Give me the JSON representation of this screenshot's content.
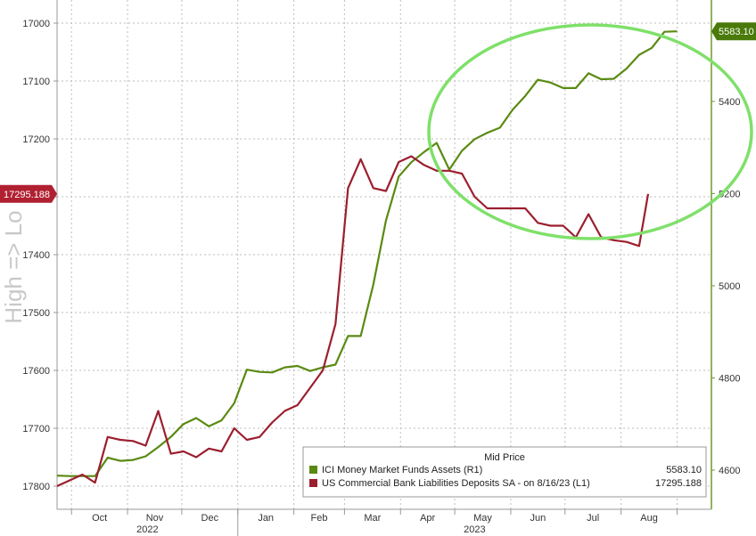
{
  "chart_data": {
    "type": "line",
    "ylabel_left": "High => Lo",
    "left_axis": {
      "ticks": [
        17000,
        17100,
        17200,
        17300,
        17400,
        17500,
        17600,
        17700,
        17800
      ],
      "tick_labels": [
        "17000",
        "17100",
        "17200",
        "",
        "17400",
        "17500",
        "17600",
        "17700",
        "17800"
      ],
      "range": [
        16960,
        17840
      ],
      "inverted": true
    },
    "right_axis": {
      "ticks": [
        4600,
        4800,
        5000,
        5200,
        5400
      ],
      "tick_labels": [
        "4600",
        "4800",
        "5000",
        "5200",
        "5400"
      ],
      "range": [
        4515,
        5620
      ]
    },
    "x_axis": {
      "months": [
        "Oct",
        "Nov",
        "Dec",
        "Jan",
        "Feb",
        "Mar",
        "Apr",
        "May",
        "Jun",
        "Jul",
        "Aug"
      ],
      "years": [
        "2022",
        "2023"
      ],
      "range": [
        "2022-09-23",
        "2023-09-20"
      ]
    },
    "legend": {
      "title": "Mid Price",
      "entries": [
        {
          "label": "ICI Money Market Funds Assets  (R1)",
          "value": "5583.10",
          "color": "#5a8a12"
        },
        {
          "label": "US Commercial Bank Liabilities Deposits SA -  on 8/16/23  (L1)",
          "value": "17295.188",
          "color": "#9b1f2e"
        }
      ]
    },
    "last_value_tags": [
      {
        "text": "17295.188",
        "axis": "left",
        "color": "#b02030"
      },
      {
        "text": "5583.10",
        "axis": "right",
        "color": "#4a7a0a"
      }
    ],
    "grid": true,
    "series": [
      {
        "name": "ICI Money Market Funds Assets  (R1)",
        "axis": "right",
        "color": "#5a8a12",
        "x": [
          "2022-09-23",
          "2022-09-30",
          "2022-10-07",
          "2022-10-14",
          "2022-10-21",
          "2022-10-28",
          "2022-11-04",
          "2022-11-11",
          "2022-11-18",
          "2022-11-25",
          "2022-12-02",
          "2022-12-09",
          "2022-12-16",
          "2022-12-23",
          "2022-12-30",
          "2023-01-06",
          "2023-01-13",
          "2023-01-20",
          "2023-01-27",
          "2023-02-03",
          "2023-02-10",
          "2023-02-17",
          "2023-02-24",
          "2023-03-03",
          "2023-03-10",
          "2023-03-17",
          "2023-03-24",
          "2023-03-31",
          "2023-04-07",
          "2023-04-14",
          "2023-04-21",
          "2023-04-28",
          "2023-05-05",
          "2023-05-12",
          "2023-05-19",
          "2023-05-26",
          "2023-06-02",
          "2023-06-09",
          "2023-06-16",
          "2023-06-23",
          "2023-06-30",
          "2023-07-07",
          "2023-07-14",
          "2023-07-21",
          "2023-07-28",
          "2023-08-04",
          "2023-08-11",
          "2023-08-18",
          "2023-08-25",
          "2023-09-01"
        ],
        "values": [
          4588,
          4587,
          4587,
          4587,
          4627,
          4620,
          4622,
          4630,
          4650,
          4672,
          4700,
          4713,
          4695,
          4708,
          4745,
          4818,
          4813,
          4812,
          4823,
          4826,
          4815,
          4823,
          4829,
          4891,
          4891,
          5003,
          5142,
          5237,
          5268,
          5290,
          5310,
          5252,
          5293,
          5318,
          5332,
          5343,
          5382,
          5412,
          5447,
          5441,
          5429,
          5429,
          5461,
          5448,
          5449,
          5471,
          5501,
          5516,
          5551,
          5552
        ]
      },
      {
        "name": "US Commercial Bank Liabilities Deposits SA -  on 8/16/23  (L1)",
        "axis": "left",
        "color": "#9b1f2e",
        "x": [
          "2022-09-23",
          "2022-09-30",
          "2022-10-07",
          "2022-10-14",
          "2022-10-21",
          "2022-10-28",
          "2022-11-04",
          "2022-11-11",
          "2022-11-18",
          "2022-11-25",
          "2022-12-02",
          "2022-12-09",
          "2022-12-16",
          "2022-12-23",
          "2022-12-30",
          "2023-01-06",
          "2023-01-13",
          "2023-01-20",
          "2023-01-27",
          "2023-02-03",
          "2023-02-10",
          "2023-02-17",
          "2023-02-24",
          "2023-03-03",
          "2023-03-10",
          "2023-03-17",
          "2023-03-24",
          "2023-03-31",
          "2023-04-07",
          "2023-04-14",
          "2023-04-21",
          "2023-04-28",
          "2023-05-05",
          "2023-05-12",
          "2023-05-19",
          "2023-05-26",
          "2023-06-02",
          "2023-06-09",
          "2023-06-16",
          "2023-06-23",
          "2023-06-30",
          "2023-07-07",
          "2023-07-14",
          "2023-07-21",
          "2023-07-28",
          "2023-08-04",
          "2023-08-11",
          "2023-08-16"
        ],
        "values": [
          17800,
          17790,
          17780,
          17794,
          17715,
          17720,
          17722,
          17730,
          17670,
          17744,
          17740,
          17750,
          17735,
          17740,
          17700,
          17720,
          17715,
          17690,
          17670,
          17660,
          17630,
          17600,
          17520,
          17285,
          17235,
          17285,
          17290,
          17240,
          17230,
          17245,
          17255,
          17255,
          17260,
          17300,
          17320,
          17320,
          17320,
          17320,
          17345,
          17350,
          17350,
          17370,
          17330,
          17370,
          17375,
          17378,
          17385,
          17295
        ]
      }
    ]
  }
}
